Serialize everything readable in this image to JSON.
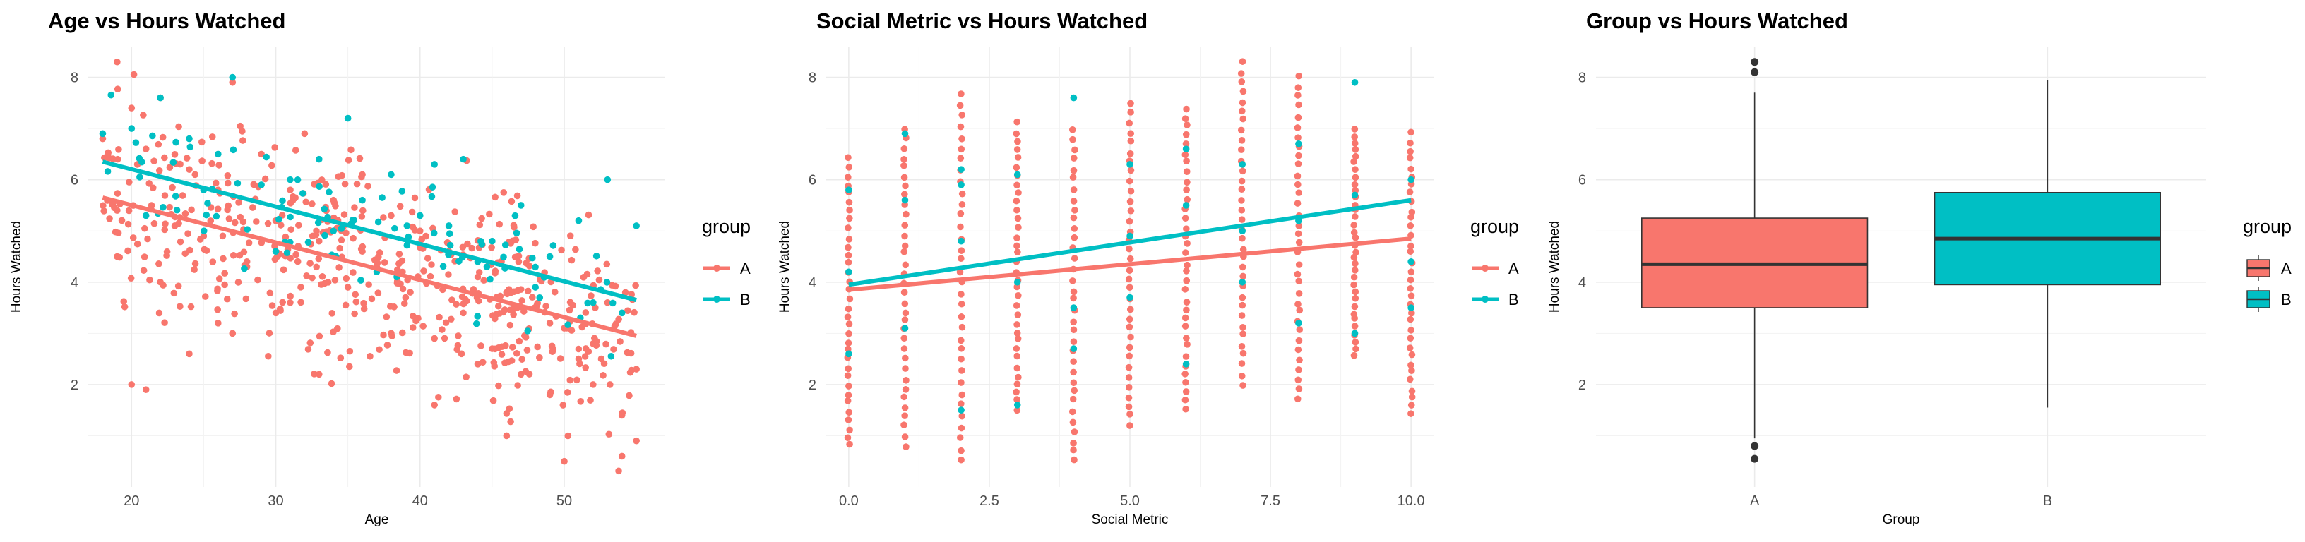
{
  "chart_data": [
    {
      "type": "scatter",
      "title": "Age vs Hours Watched",
      "xlabel": "Age",
      "ylabel": "Hours Watched",
      "xlim": [
        17,
        57
      ],
      "ylim": [
        0,
        8.6
      ],
      "xticks": [
        20,
        30,
        40,
        50
      ],
      "yticks": [
        2,
        4,
        6,
        8
      ],
      "grid": true,
      "legend": {
        "title": "group",
        "position": "right",
        "entries": [
          "A",
          "B"
        ]
      },
      "colors": {
        "A": "#F8766D",
        "B": "#00BFC4"
      },
      "series": [
        {
          "name": "A",
          "trend": {
            "x": [
              18,
              55
            ],
            "y": [
              5.65,
              2.95
            ]
          },
          "x": [
            18,
            19,
            19,
            20,
            21,
            22,
            23,
            24,
            25,
            26,
            27,
            28,
            29,
            30,
            31,
            32,
            33,
            34,
            35,
            36,
            37,
            38,
            39,
            40,
            41,
            42,
            43,
            44,
            45,
            46,
            47,
            48,
            49,
            50,
            51,
            52,
            53,
            54,
            55,
            19,
            20,
            22,
            24,
            26,
            28,
            30,
            33,
            36,
            38,
            41,
            44,
            46,
            49,
            52,
            55,
            27,
            21,
            50,
            54
          ],
          "y": [
            6.8,
            8.3,
            5.4,
            7.4,
            6.6,
            7.6,
            5.1,
            6.2,
            4.9,
            5.8,
            7.9,
            4.4,
            6.5,
            5.2,
            3.6,
            6.9,
            4.8,
            5.6,
            3.9,
            6.1,
            4.3,
            5.3,
            3.7,
            5.0,
            2.9,
            4.6,
            3.4,
            4.1,
            2.7,
            3.8,
            2.2,
            3.5,
            1.8,
            3.1,
            2.5,
            2.0,
            3.6,
            1.4,
            2.3,
            4.5,
            2.0,
            4.0,
            2.6,
            3.2,
            4.3,
            3.4,
            2.2,
            4.6,
            3.0,
            1.6,
            2.4,
            1.0,
            3.2,
            2.8,
            0.9,
            3.0,
            1.9,
            0.5,
            0.6
          ]
        },
        {
          "name": "B",
          "trend": {
            "x": [
              18,
              55
            ],
            "y": [
              6.35,
              3.65
            ]
          },
          "x": [
            18,
            20,
            22,
            24,
            26,
            27,
            29,
            31,
            33,
            35,
            36,
            38,
            40,
            41,
            42,
            43,
            45,
            47,
            49,
            51,
            53,
            55,
            21,
            25,
            30,
            34,
            37,
            44,
            48,
            52,
            54
          ],
          "y": [
            6.9,
            7.0,
            7.6,
            6.8,
            6.5,
            8.0,
            5.9,
            6.0,
            6.4,
            7.2,
            5.6,
            6.1,
            5.3,
            6.3,
            5.1,
            6.4,
            4.8,
            5.5,
            4.5,
            5.2,
            6.0,
            5.1,
            5.3,
            5.8,
            4.6,
            5.0,
            4.2,
            4.4,
            3.9,
            3.6,
            3.4
          ]
        }
      ]
    },
    {
      "type": "scatter",
      "title": "Social Metric vs Hours Watched",
      "xlabel": "Social Metric",
      "ylabel": "Hours Watched",
      "xlim": [
        -0.4,
        10.4
      ],
      "ylim": [
        0,
        8.6
      ],
      "xticks": [
        0.0,
        2.5,
        5.0,
        7.5,
        10.0
      ],
      "xticklabels": [
        "0.0",
        "2.5",
        "5.0",
        "7.5",
        "10.0"
      ],
      "yticks": [
        2,
        4,
        6,
        8
      ],
      "grid": true,
      "legend": {
        "title": "group",
        "position": "right",
        "entries": [
          "A",
          "B"
        ]
      },
      "colors": {
        "A": "#F8766D",
        "B": "#00BFC4"
      },
      "series": [
        {
          "name": "A",
          "trend": {
            "x": [
              0,
              10
            ],
            "y": [
              3.85,
              4.85
            ]
          },
          "columns": [
            {
              "x": 0,
              "lo": 0.8,
              "hi": 6.4
            },
            {
              "x": 1,
              "lo": 0.8,
              "hi": 7.0
            },
            {
              "x": 2,
              "lo": 0.5,
              "hi": 7.7
            },
            {
              "x": 3,
              "lo": 1.5,
              "hi": 7.1
            },
            {
              "x": 4,
              "lo": 0.5,
              "hi": 7.0
            },
            {
              "x": 5,
              "lo": 1.2,
              "hi": 7.5
            },
            {
              "x": 6,
              "lo": 1.5,
              "hi": 7.4
            },
            {
              "x": 7,
              "lo": 2.0,
              "hi": 8.3
            },
            {
              "x": 8,
              "lo": 1.7,
              "hi": 8.0
            },
            {
              "x": 9,
              "lo": 2.6,
              "hi": 7.0
            },
            {
              "x": 10,
              "lo": 1.4,
              "hi": 6.9
            }
          ]
        },
        {
          "name": "B",
          "trend": {
            "x": [
              0,
              10
            ],
            "y": [
              3.95,
              5.6
            ]
          },
          "x": [
            0,
            0,
            0,
            1,
            1,
            1,
            2,
            2,
            2,
            2,
            3,
            3,
            3,
            4,
            4,
            4,
            5,
            5,
            5,
            6,
            6,
            6,
            7,
            7,
            7,
            8,
            8,
            8,
            9,
            9,
            9,
            10,
            10,
            10
          ],
          "y": [
            2.6,
            4.2,
            5.8,
            3.1,
            5.6,
            6.9,
            1.5,
            4.8,
            5.9,
            6.2,
            1.6,
            4.0,
            6.1,
            2.7,
            3.5,
            7.6,
            3.7,
            4.9,
            6.3,
            2.4,
            5.5,
            6.6,
            4.0,
            5.0,
            6.3,
            3.2,
            5.2,
            6.7,
            3.0,
            5.7,
            7.9,
            3.5,
            6.0,
            4.4
          ]
        }
      ]
    },
    {
      "type": "box",
      "title": "Group vs Hours Watched",
      "xlabel": "Group",
      "ylabel": "Hours Watched",
      "categories": [
        "A",
        "B"
      ],
      "ylim": [
        0,
        8.6
      ],
      "yticks": [
        2,
        4,
        6,
        8
      ],
      "grid": true,
      "legend": {
        "title": "group",
        "position": "right",
        "entries": [
          "A",
          "B"
        ]
      },
      "colors": {
        "A": "#F8766D",
        "B": "#00BFC4"
      },
      "boxes": [
        {
          "name": "A",
          "min": 0.95,
          "q1": 3.5,
          "median": 4.35,
          "q3": 5.25,
          "max": 7.7,
          "outliers": [
            8.3,
            8.1,
            0.8,
            0.55
          ]
        },
        {
          "name": "B",
          "min": 1.55,
          "q1": 3.95,
          "median": 4.85,
          "q3": 5.75,
          "max": 7.95,
          "outliers": []
        }
      ]
    }
  ]
}
